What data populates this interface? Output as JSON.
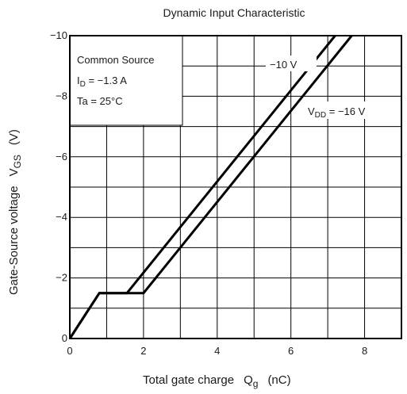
{
  "chart_data": {
    "type": "line",
    "title": "Dynamic Input Characteristic",
    "xlabel": "Total gate charge",
    "xlabel_symbol": "Q",
    "xlabel_symbol_sub": "g",
    "xlabel_unit": "(nC)",
    "ylabel": "Gate-Source voltage",
    "ylabel_symbol": "V",
    "ylabel_symbol_sub": "GS",
    "ylabel_unit": "(V)",
    "xlim": [
      0,
      9
    ],
    "ylim": [
      0,
      -10
    ],
    "x_ticks": [
      "0",
      "2",
      "4",
      "6",
      "8"
    ],
    "x_tick_values": [
      0,
      2,
      4,
      6,
      8
    ],
    "y_ticks": [
      "0",
      "−2",
      "−4",
      "−6",
      "−8",
      "−10"
    ],
    "y_tick_values": [
      0,
      -2,
      -4,
      -6,
      -8,
      -10
    ],
    "grid": true,
    "series": [
      {
        "name": "−10 V",
        "points": [
          [
            0,
            0
          ],
          [
            0.8,
            -1.5
          ],
          [
            1.55,
            -1.5
          ],
          [
            7.2,
            -10
          ]
        ]
      },
      {
        "name": "V_DD = −16 V",
        "points": [
          [
            0,
            0
          ],
          [
            0.8,
            -1.5
          ],
          [
            2.0,
            -1.5
          ],
          [
            7.65,
            -10
          ]
        ]
      }
    ],
    "annotations": {
      "conditions": [
        "Common Source",
        "I",
        "D",
        " = −1.3 A",
        "Ta = 25°C"
      ],
      "label_10v": "−10 V",
      "label_16v_prefix": "V",
      "label_16v_sub": "DD",
      "label_16v_suffix": " = −16 V"
    }
  }
}
